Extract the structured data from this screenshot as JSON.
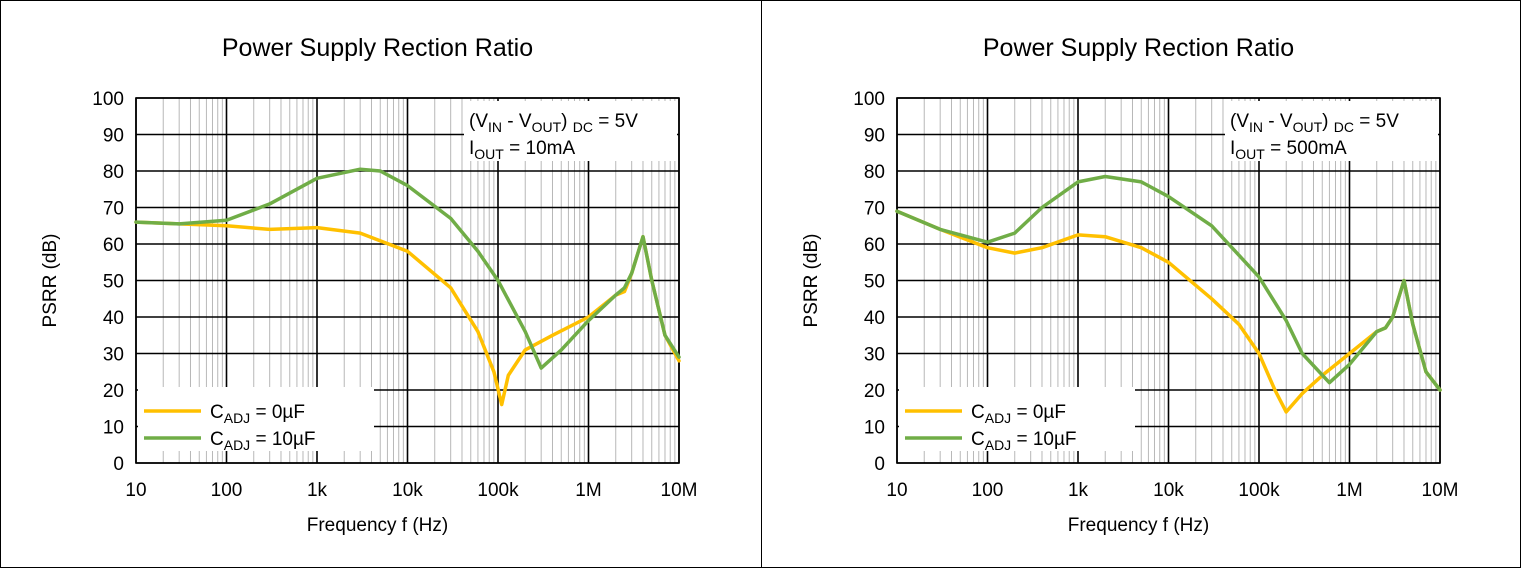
{
  "charts": [
    {
      "title": "Power Supply Rection Ratio",
      "ylabel": "PSRR (dB)",
      "xlabel": "Frequency f (Hz)",
      "annotation": {
        "line1": "(V_IN - V_OUT) _DC = 5V",
        "line2": "I_OUT = 10mA"
      },
      "legend": [
        "C_ADJ = 0µF",
        "C_ADJ = 10µF"
      ]
    },
    {
      "title": "Power Supply Rection Ratio",
      "ylabel": "PSRR (dB)",
      "xlabel": "Frequency f (Hz)",
      "annotation": {
        "line1": "(V_IN - V_OUT) _DC = 5V",
        "line2": "I_OUT = 500mA"
      },
      "legend": [
        "C_ADJ = 0µF",
        "C_ADJ = 10µF"
      ]
    }
  ],
  "chart_data": [
    {
      "type": "line",
      "title": "Power Supply Rection Ratio",
      "xlabel": "Frequency f (Hz)",
      "ylabel": "PSRR (dB)",
      "x_scale": "log",
      "xlim": [
        10,
        10000000
      ],
      "ylim": [
        0,
        100
      ],
      "x_ticks": [
        10,
        100,
        1000,
        10000,
        100000,
        1000000,
        10000000
      ],
      "x_tick_labels": [
        "10",
        "100",
        "1k",
        "10k",
        "100k",
        "1M",
        "10M"
      ],
      "y_ticks": [
        0,
        10,
        20,
        30,
        40,
        50,
        60,
        70,
        80,
        90,
        100
      ],
      "grid": true,
      "legend_position": "bottom-left",
      "series": [
        {
          "name": "C_ADJ = 0µF",
          "color": "#FFC000",
          "x": [
            10,
            30,
            100,
            300,
            1000,
            3000,
            10000,
            30000,
            60000,
            90000,
            110000,
            130000,
            200000,
            400000,
            1000000,
            2000000,
            2500000,
            3000000,
            4000000,
            5000000,
            7000000,
            10000000
          ],
          "y": [
            66,
            65.5,
            65,
            64,
            64.5,
            63,
            58,
            48,
            36,
            25,
            16,
            24,
            31,
            35,
            40,
            46,
            47,
            52,
            62,
            50,
            35,
            28
          ]
        },
        {
          "name": "C_ADJ = 10µF",
          "color": "#70AD47",
          "x": [
            10,
            30,
            100,
            300,
            1000,
            3000,
            5000,
            10000,
            30000,
            60000,
            100000,
            200000,
            300000,
            500000,
            1000000,
            2000000,
            2500000,
            3000000,
            4000000,
            5000000,
            7000000,
            10000000
          ],
          "y": [
            66,
            65.5,
            66.5,
            71,
            78,
            80.5,
            80,
            76,
            67,
            58,
            50,
            36,
            26,
            31,
            39,
            46,
            48,
            52,
            62,
            50,
            35,
            29
          ]
        }
      ]
    },
    {
      "type": "line",
      "title": "Power Supply Rection Ratio",
      "xlabel": "Frequency f (Hz)",
      "ylabel": "PSRR (dB)",
      "x_scale": "log",
      "xlim": [
        10,
        10000000
      ],
      "ylim": [
        0,
        100
      ],
      "x_ticks": [
        10,
        100,
        1000,
        10000,
        100000,
        1000000,
        10000000
      ],
      "x_tick_labels": [
        "10",
        "100",
        "1k",
        "10k",
        "100k",
        "1M",
        "10M"
      ],
      "y_ticks": [
        0,
        10,
        20,
        30,
        40,
        50,
        60,
        70,
        80,
        90,
        100
      ],
      "grid": true,
      "legend_position": "bottom-left",
      "series": [
        {
          "name": "C_ADJ = 0µF",
          "color": "#FFC000",
          "x": [
            10,
            30,
            100,
            200,
            400,
            1000,
            2000,
            5000,
            10000,
            30000,
            60000,
            100000,
            150000,
            200000,
            300000,
            500000,
            1000000,
            2000000,
            2500000,
            3000000,
            4000000,
            5000000,
            7000000,
            10000000
          ],
          "y": [
            69,
            64,
            59,
            57.5,
            59,
            62.5,
            62,
            59,
            55,
            45,
            38,
            30,
            20,
            14,
            19,
            24,
            30,
            36,
            37,
            40,
            50,
            38,
            25,
            20
          ]
        },
        {
          "name": "C_ADJ = 10µF",
          "color": "#70AD47",
          "x": [
            10,
            30,
            100,
            200,
            400,
            1000,
            2000,
            5000,
            10000,
            30000,
            100000,
            200000,
            300000,
            600000,
            1000000,
            2000000,
            2500000,
            3000000,
            4000000,
            5000000,
            7000000,
            10000000
          ],
          "y": [
            69,
            64,
            60.5,
            63,
            70,
            77,
            78.5,
            77,
            73,
            65,
            51,
            39,
            30,
            22,
            27,
            36,
            37,
            40,
            50,
            38,
            25,
            20
          ]
        }
      ]
    }
  ]
}
